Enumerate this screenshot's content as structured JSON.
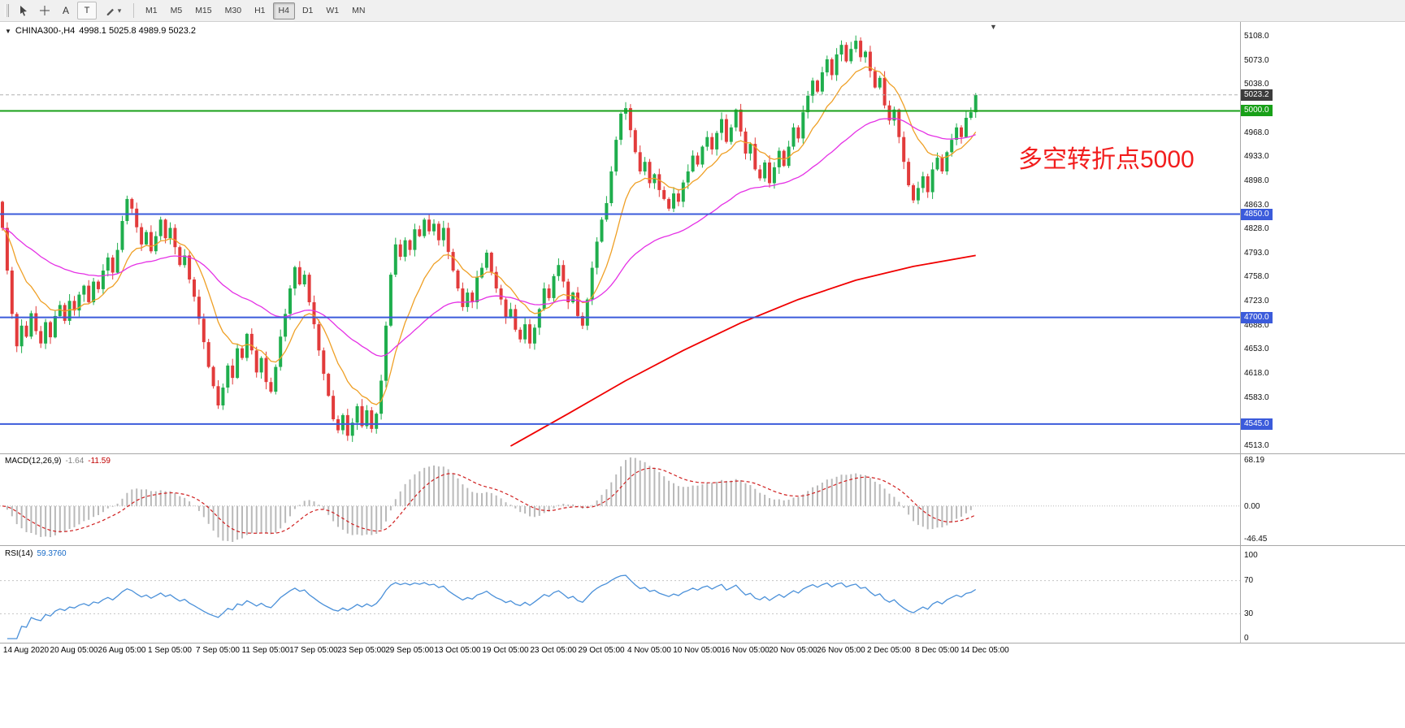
{
  "header": {
    "collapse_glyph": "▼",
    "symbol_text": "CHINA300-,H4",
    "ohlc_text": "4998.1 5025.8 4989.9 5023.2",
    "shift_marker_glyph": "▼"
  },
  "toolbar": {
    "text_tool_label": "A",
    "label_tool_label": "T",
    "dropdown_glyph": "▾",
    "tool_icons": [
      "pointer-icon",
      "crosshair-icon",
      "text-annotation-icon",
      "text-label-icon",
      "draw-tools-icon"
    ],
    "timeframes": [
      "M1",
      "M5",
      "M15",
      "M30",
      "H1",
      "H4",
      "D1",
      "W1",
      "MN"
    ],
    "active_timeframe": "H4"
  },
  "chart_data": {
    "type": "candlestick",
    "title": "CHINA300-,H4",
    "symbol": "CHINA300-",
    "timeframe": "H4",
    "last_ohlc": {
      "open": 4998.1,
      "high": 5025.8,
      "low": 4989.9,
      "close": 5023.2
    },
    "y_axis": {
      "min": 4513.0,
      "max": 5108.0,
      "tick_step": 35,
      "visible_ticks": [
        "5108.0",
        "5073.0",
        "5038.0",
        "4968.0",
        "4933.0",
        "4898.0",
        "4863.0",
        "4828.0",
        "4793.0",
        "4758.0",
        "4723.0",
        "4688.0",
        "4653.0",
        "4618.0",
        "4583.0",
        "4513.0"
      ]
    },
    "x_labels": [
      "14 Aug 2020",
      "20 Aug 05:00",
      "26 Aug 05:00",
      "1 Sep 05:00",
      "7 Sep 05:00",
      "11 Sep 05:00",
      "17 Sep 05:00",
      "23 Sep 05:00",
      "29 Sep 05:00",
      "13 Oct 05:00",
      "19 Oct 05:00",
      "23 Oct 05:00",
      "29 Oct 05:00",
      "4 Nov 05:00",
      "10 Nov 05:00",
      "16 Nov 05:00",
      "20 Nov 05:00",
      "26 Nov 05:00",
      "2 Dec 05:00",
      "8 Dec 05:00",
      "14 Dec 05:00"
    ],
    "colors": {
      "up": "#1fae4d",
      "down": "#e23b3b",
      "background": "#ffffff"
    },
    "candles": {
      "first_open": 4868,
      "closes": [
        4830,
        4768,
        4705,
        4658,
        4688,
        4672,
        4706,
        4680,
        4662,
        4693,
        4671,
        4702,
        4718,
        4695,
        4724,
        4710,
        4733,
        4746,
        4722,
        4752,
        4741,
        4768,
        4787,
        4765,
        4798,
        4840,
        4872,
        4858,
        4831,
        4806,
        4824,
        4796,
        4818,
        4842,
        4815,
        4830,
        4802,
        4776,
        4790,
        4755,
        4730,
        4698,
        4664,
        4628,
        4600,
        4572,
        4598,
        4630,
        4612,
        4655,
        4641,
        4676,
        4652,
        4620,
        4641,
        4606,
        4592,
        4628,
        4672,
        4705,
        4742,
        4773,
        4748,
        4762,
        4722,
        4690,
        4652,
        4618,
        4586,
        4552,
        4536,
        4558,
        4528,
        4547,
        4571,
        4542,
        4565,
        4538,
        4560,
        4608,
        4688,
        4762,
        4806,
        4788,
        4812,
        4798,
        4828,
        4818,
        4842,
        4825,
        4836,
        4812,
        4830,
        4795,
        4768,
        4742,
        4715,
        4736,
        4722,
        4758,
        4772,
        4794,
        4766,
        4742,
        4726,
        4700,
        4712,
        4682,
        4668,
        4690,
        4662,
        4685,
        4712,
        4742,
        4728,
        4760,
        4776,
        4752,
        4722,
        4736,
        4702,
        4688,
        4726,
        4772,
        4810,
        4842,
        4866,
        4912,
        4958,
        4996,
        5004,
        4972,
        4940,
        4912,
        4926,
        4895,
        4908,
        4885,
        4872,
        4858,
        4880,
        4868,
        4896,
        4912,
        4935,
        4922,
        4948,
        4962,
        4944,
        4968,
        4988,
        4955,
        4976,
        5002,
        4970,
        4938,
        4952,
        4915,
        4902,
        4925,
        4895,
        4918,
        4942,
        4920,
        4948,
        4976,
        4960,
        4998,
        5022,
        5044,
        5028,
        5056,
        5075,
        5052,
        5082,
        5096,
        5072,
        5090,
        5102,
        5078,
        5086,
        5058,
        5034,
        5048,
        5008,
        4986,
        5002,
        4962,
        4926,
        4892,
        4870,
        4888,
        4905,
        4882,
        4915,
        4932,
        4912,
        4940,
        4958,
        4976,
        4962,
        4990,
        4998.1,
        5023.2
      ],
      "last": {
        "open": 4998.1,
        "high": 5025.8,
        "low": 4989.9,
        "close": 5023.2
      }
    },
    "moving_averages": [
      {
        "type": "ema",
        "period": 12,
        "color": "#efa026"
      },
      {
        "type": "ema",
        "period": 45,
        "color": "#e531e5"
      }
    ],
    "slow_ma": {
      "color": "#f00000",
      "points": [
        [
          106,
          4513
        ],
        [
          118,
          4560
        ],
        [
          130,
          4608
        ],
        [
          142,
          4652
        ],
        [
          154,
          4692
        ],
        [
          166,
          4726
        ],
        [
          178,
          4754
        ],
        [
          190,
          4774
        ],
        [
          203,
          4790
        ]
      ]
    },
    "h_lines": [
      {
        "price": 5000.0,
        "label": "5000.0",
        "color": "#18a018"
      },
      {
        "price": 4850.0,
        "label": "4850.0",
        "color": "#3b5bdb"
      },
      {
        "price": 4700.0,
        "label": "4700.0",
        "color": "#3b5bdb"
      },
      {
        "price": 4545.0,
        "label": "4545.0",
        "color": "#3b5bdb"
      }
    ],
    "price_marker": {
      "price": 5023.2,
      "label": "5023.2",
      "color": "#3c3c3c"
    },
    "annotation": {
      "text": "多空转折点5000",
      "color": "#f21d1d"
    },
    "indicators": [
      {
        "type": "MACD",
        "label": "MACD(12,26,9)",
        "main_value": "-1.64",
        "signal_value": "-11.59",
        "axis_labels": {
          "top": "68.19",
          "zero": "0.00",
          "bottom": "-46.45"
        },
        "histogram_color": "#b9b9b9",
        "signal_color": "#d02020"
      },
      {
        "type": "RSI",
        "label": "RSI(14)",
        "value": "59.3760",
        "axis_labels": [
          "100",
          "70",
          "30",
          "0"
        ],
        "levels": [
          70,
          30
        ],
        "line_color": "#4a90d9"
      }
    ]
  }
}
